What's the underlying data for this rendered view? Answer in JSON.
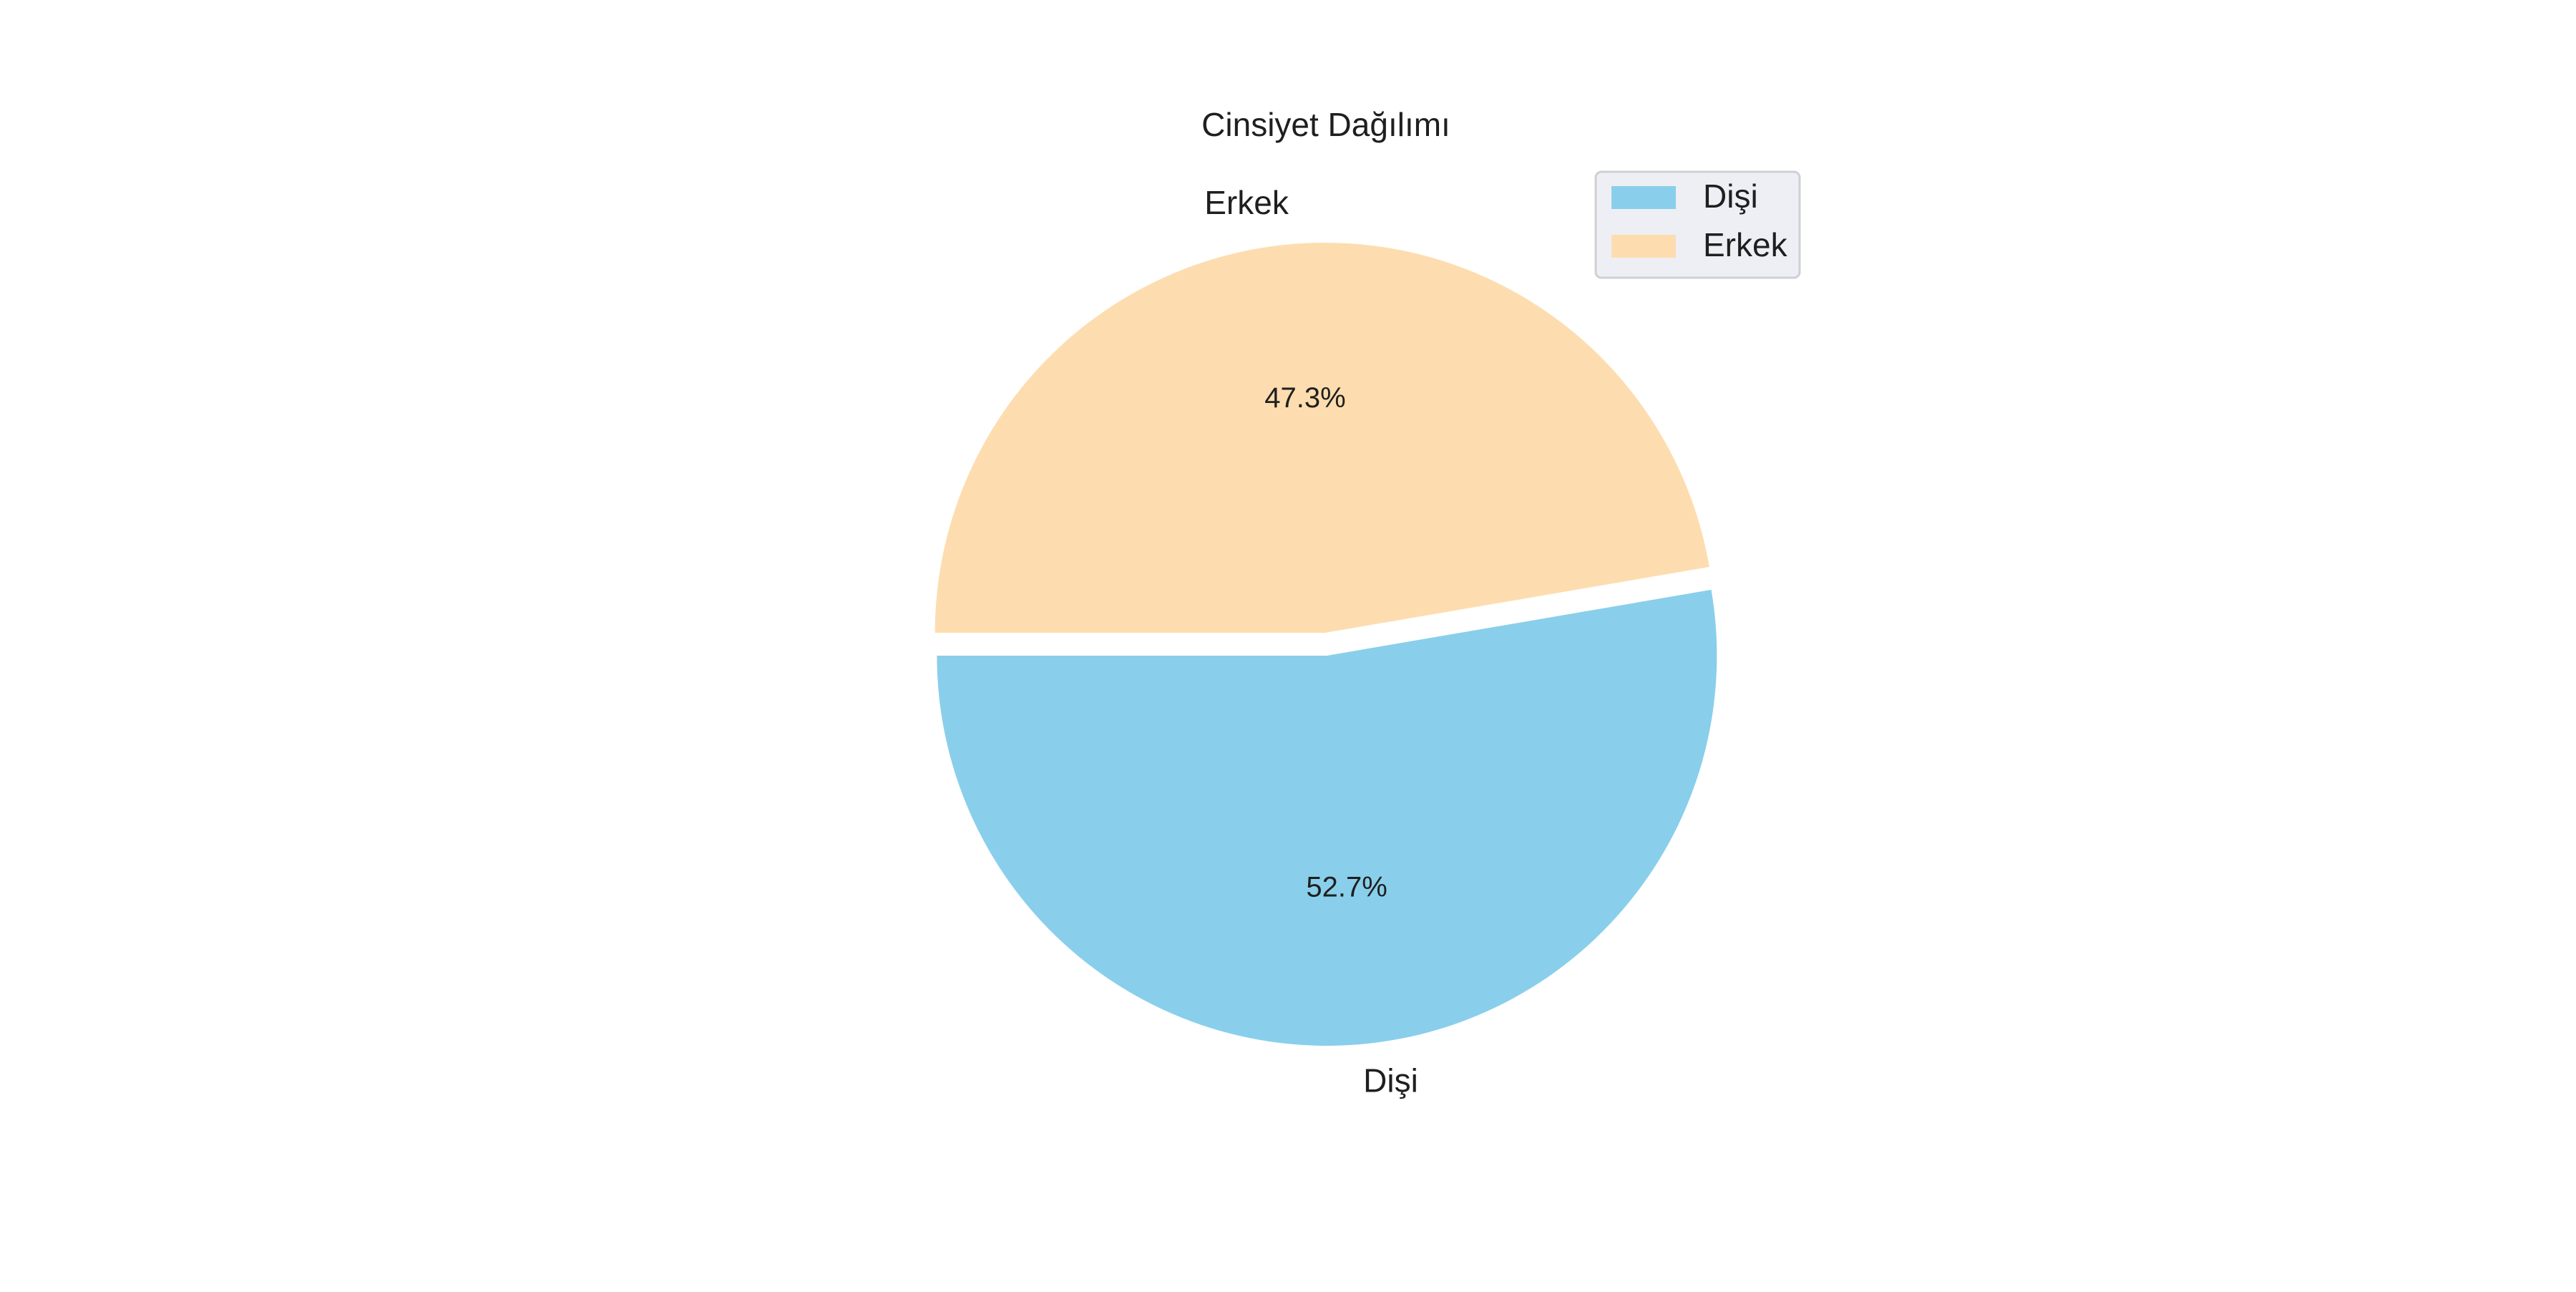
{
  "chart_data": {
    "type": "pie",
    "title": "Cinsiyet Dağılımı",
    "slices": [
      {
        "label": "Dişi",
        "value": 52.7,
        "pct_label": "52.7%",
        "color": "#89CFEB"
      },
      {
        "label": "Erkek",
        "value": 47.3,
        "pct_label": "47.3%",
        "color": "#FDDDAF"
      }
    ],
    "legend": {
      "placement": "top-right",
      "entries": [
        "Dişi",
        "Erkek"
      ]
    },
    "start_angle_deg": 180,
    "direction": "counterclockwise",
    "exploded": true
  }
}
